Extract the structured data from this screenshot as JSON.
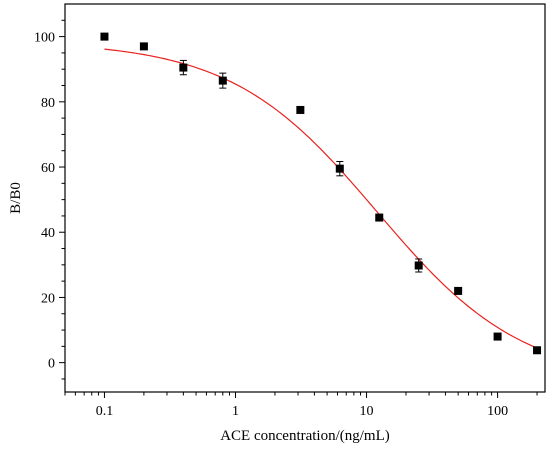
{
  "chart_data": {
    "type": "scatter",
    "xlabel": "ACE concentration/(ng/mL)",
    "ylabel": "B/B0",
    "x_scale": "log",
    "xlim": [
      0.05,
      230
    ],
    "ylim": [
      -9,
      110
    ],
    "x_ticks": [
      0.1,
      1,
      10,
      100
    ],
    "x_tick_labels": [
      "0.1",
      "1",
      "10",
      "100"
    ],
    "y_ticks": [
      0,
      20,
      40,
      60,
      80,
      100
    ],
    "y_tick_labels": [
      "0",
      "20",
      "40",
      "60",
      "80",
      "100"
    ],
    "grid": false,
    "marker_color": "#000000",
    "fit_color": "#e8231f",
    "series": [
      {
        "x": [
          0.1,
          0.2,
          0.4,
          0.8,
          3.125,
          6.25,
          12.5,
          25,
          50,
          100,
          200
        ],
        "y": [
          100,
          97,
          90.5,
          86.5,
          77.5,
          59.5,
          44.5,
          29.8,
          22,
          8,
          3.8
        ],
        "error": [
          0,
          0,
          2.2,
          2.3,
          0,
          2.2,
          0,
          2,
          0,
          0,
          0
        ]
      }
    ],
    "fit_curve": {
      "model": "four-parameter logistic",
      "top": 98.6,
      "bottom": -6,
      "ic50": 12,
      "hill": 0.78
    }
  }
}
